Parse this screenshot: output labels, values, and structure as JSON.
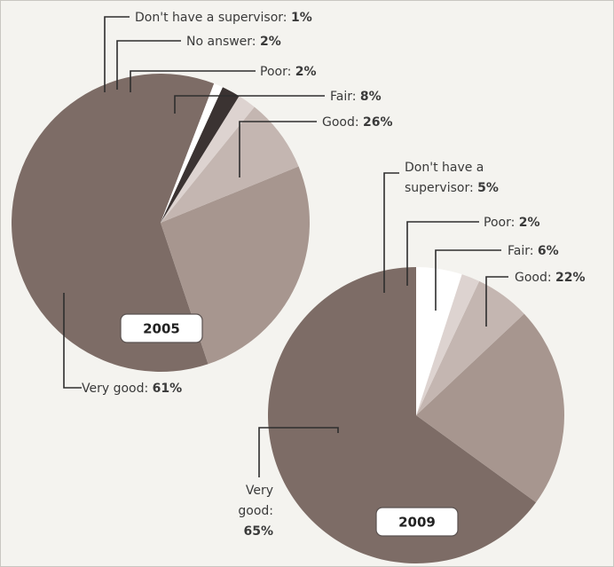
{
  "colors": {
    "very_good": "#7d6c66",
    "good": "#a7968f",
    "fair": "#c4b6b1",
    "poor": "#ddd3d0",
    "no_answer": "#3b3332",
    "no_supervisor": "#ffffff"
  },
  "chart_data": [
    {
      "type": "pie",
      "year_label": "2005",
      "slices": [
        {
          "label": "Very good:",
          "value": 61,
          "value_text": "61%",
          "color_key": "very_good"
        },
        {
          "label": "Good:",
          "value": 26,
          "value_text": "26%",
          "color_key": "good"
        },
        {
          "label": "Fair:",
          "value": 8,
          "value_text": "8%",
          "color_key": "fair"
        },
        {
          "label": "Poor:",
          "value": 2,
          "value_text": "2%",
          "color_key": "poor"
        },
        {
          "label": "No answer:",
          "value": 2,
          "value_text": "2%",
          "color_key": "no_answer"
        },
        {
          "label": "Don't have a supervisor:",
          "value": 1,
          "value_text": "1%",
          "color_key": "no_supervisor"
        }
      ]
    },
    {
      "type": "pie",
      "year_label": "2009",
      "slices": [
        {
          "label": "Very good:",
          "label_lines": [
            "Very",
            "good:"
          ],
          "value": 65,
          "value_text": "65%",
          "color_key": "very_good"
        },
        {
          "label": "Good:",
          "value": 22,
          "value_text": "22%",
          "color_key": "good"
        },
        {
          "label": "Fair:",
          "value": 6,
          "value_text": "6%",
          "color_key": "fair"
        },
        {
          "label": "Poor:",
          "value": 2,
          "value_text": "2%",
          "color_key": "poor"
        },
        {
          "label": "Don't have a supervisor:",
          "label_lines": [
            "Don't have a",
            "supervisor:"
          ],
          "value": 5,
          "value_text": "5%",
          "color_key": "no_supervisor"
        }
      ]
    }
  ]
}
